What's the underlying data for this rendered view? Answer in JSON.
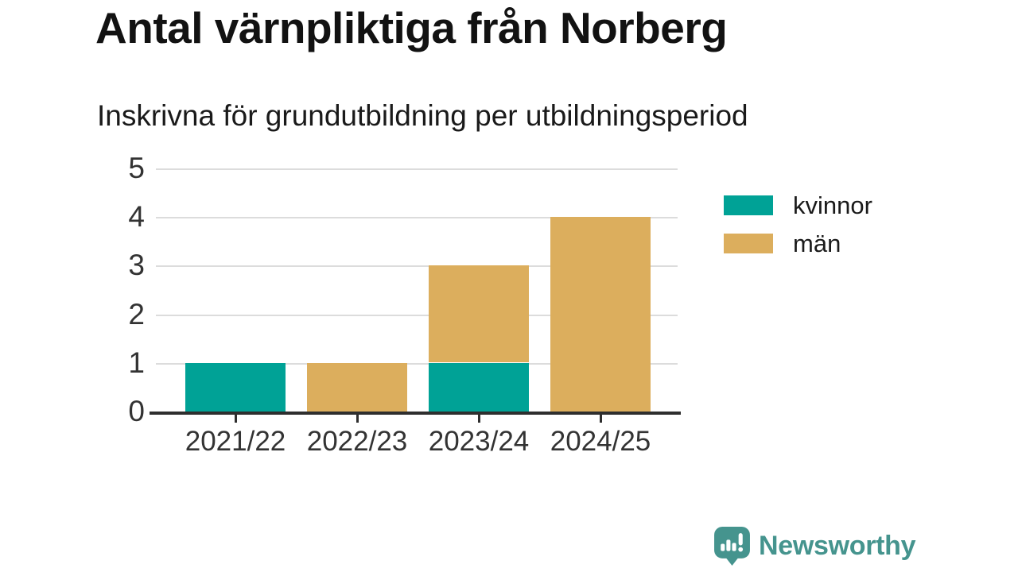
{
  "chart_data": {
    "type": "bar",
    "stacked": true,
    "title": "Antal värnpliktiga från Norberg",
    "subtitle": "Inskrivna för grundutbildning per utbildningsperiod",
    "categories": [
      "2021/22",
      "2022/23",
      "2023/24",
      "2024/25"
    ],
    "series": [
      {
        "name": "kvinnor",
        "color": "#00A296",
        "values": [
          1,
          0,
          1,
          0
        ]
      },
      {
        "name": "män",
        "color": "#DCAE5D",
        "values": [
          0,
          1,
          2,
          4
        ]
      }
    ],
    "ylim": [
      0,
      5
    ],
    "yticks": [
      0,
      1,
      2,
      3,
      4,
      5
    ],
    "grid": "horizontal",
    "legend_position": "right",
    "totals": [
      1,
      1,
      3,
      4
    ]
  },
  "footer": {
    "brand": "Newsworthy",
    "logo_icon": "newsworthy-speech-bubble-bar-chart-icon"
  },
  "colors": {
    "axis": "#2e2e2e",
    "gridline": "#dcdcdc",
    "title_text": "#121212",
    "tick_text": "#333333",
    "brand_teal": "#45948E",
    "background": "#ffffff"
  }
}
